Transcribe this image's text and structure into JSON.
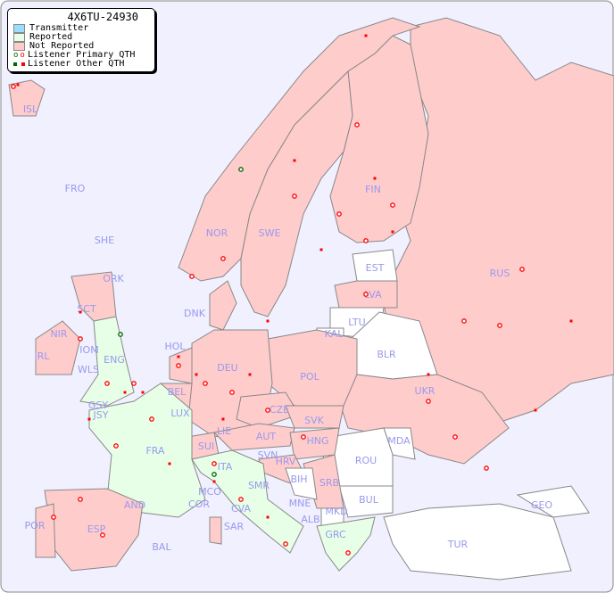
{
  "legend": {
    "title": "4X6TU-24930",
    "items": [
      {
        "label": "Transmitter",
        "color": "#99ddff"
      },
      {
        "label": "Reported",
        "color": "#e6ffe6"
      },
      {
        "label": "Not Reported",
        "color": "#ffcccc"
      },
      {
        "label": "Listener Primary QTH",
        "symbol": "circle"
      },
      {
        "label": "Listener Other QTH",
        "symbol": "square"
      }
    ]
  },
  "colors": {
    "sea": "#f0f0ff",
    "reported": "#e6ffe6",
    "not_reported": "#ffcccc",
    "no_data": "#ffffff",
    "marker": "#ff0000",
    "marker_own": "#006600",
    "label": "#9999ee"
  },
  "countries": [
    "ISL",
    "FRO",
    "SHE",
    "ORK",
    "NOR",
    "SWE",
    "FIN",
    "EST",
    "RUS",
    "LVA",
    "LTU",
    "KAL",
    "BLR",
    "DNK",
    "SCT",
    "NIR",
    "IRL",
    "IOM",
    "WLS",
    "ENG",
    "HOL",
    "BEL",
    "DEU",
    "POL",
    "GSY",
    "JSY",
    "LUX",
    "CZE",
    "SVK",
    "UKR",
    "FRA",
    "SUI",
    "LIE",
    "AUT",
    "HNG",
    "MDA",
    "ROU",
    "SVN",
    "HRV",
    "BIH",
    "SRB",
    "ITA",
    "MCO",
    "COR",
    "SMR",
    "CVA",
    "MNE",
    "ALB",
    "MKD",
    "BUL",
    "GEO",
    "POR",
    "AND",
    "ESP",
    "SAR",
    "BAL",
    "GRC",
    "TUR"
  ]
}
